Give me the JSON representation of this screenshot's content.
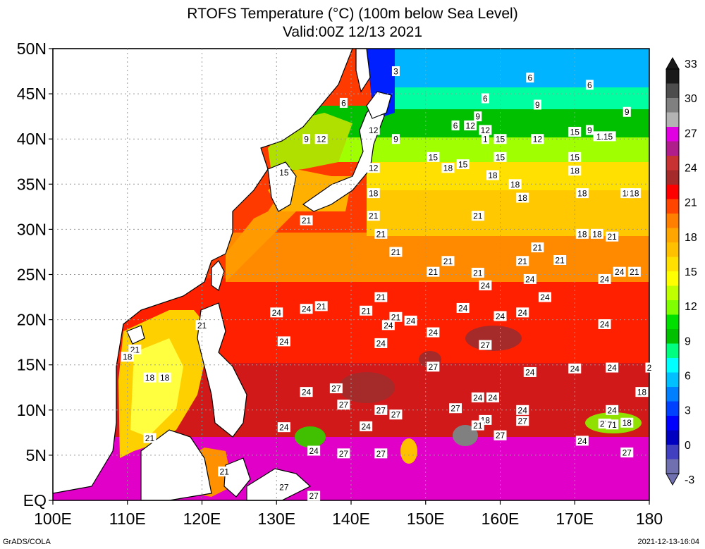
{
  "title_line1": "RTOFS Temperature (°C) (100m below Sea Level)",
  "title_line2": "Valid:00Z 12/13 2021",
  "lat_labels": [
    "50N",
    "45N",
    "40N",
    "35N",
    "30N",
    "25N",
    "20N",
    "15N",
    "10N",
    "5N",
    "EQ"
  ],
  "lon_labels": [
    "100E",
    "110E",
    "120E",
    "130E",
    "140E",
    "150E",
    "160E",
    "170E",
    "180"
  ],
  "colorbar": {
    "ticks": [
      "33",
      "30",
      "27",
      "24",
      "21",
      "18",
      "15",
      "12",
      "9",
      "6",
      "3",
      "0",
      "-3"
    ],
    "colors": [
      "#1a1a1a",
      "#4d4d4d",
      "#808080",
      "#b3b3b3",
      "#e100e1",
      "#b01e8c",
      "#c83232",
      "#a52a2a",
      "#ff0000",
      "#ff4500",
      "#ff7f00",
      "#ffa500",
      "#ffc000",
      "#ffe000",
      "#ffff00",
      "#c0ff00",
      "#7fff00",
      "#00e000",
      "#00c000",
      "#00ff80",
      "#00ffff",
      "#00c0ff",
      "#0080ff",
      "#0040ff",
      "#0000ff",
      "#0000c0",
      "#4040c0",
      "#7070b0"
    ]
  },
  "contour_labels": [
    {
      "t": "6",
      "lon": 164,
      "lat": 46.8
    },
    {
      "t": "6",
      "lon": 158,
      "lat": 44.5
    },
    {
      "t": "6",
      "lon": 172,
      "lat": 46
    },
    {
      "t": "6",
      "lon": 139,
      "lat": 44
    },
    {
      "t": "9",
      "lon": 165,
      "lat": 43.8
    },
    {
      "t": "9",
      "lon": 177,
      "lat": 43
    },
    {
      "t": "9",
      "lon": 157,
      "lat": 42.5
    },
    {
      "t": "3",
      "lon": 146,
      "lat": 47.5
    },
    {
      "t": "6",
      "lon": 154,
      "lat": 41.5
    },
    {
      "t": "12",
      "lon": 156,
      "lat": 41.5
    },
    {
      "t": "12",
      "lon": 158,
      "lat": 41
    },
    {
      "t": "12",
      "lon": 143,
      "lat": 41
    },
    {
      "t": "9",
      "lon": 134,
      "lat": 40
    },
    {
      "t": "12",
      "lon": 136,
      "lat": 40
    },
    {
      "t": "9",
      "lon": 146,
      "lat": 40
    },
    {
      "t": "15",
      "lon": 170,
      "lat": 40.8
    },
    {
      "t": "9",
      "lon": 172,
      "lat": 41
    },
    {
      "t": "1.15",
      "lon": 174,
      "lat": 40.3
    },
    {
      "t": "1",
      "lon": 158,
      "lat": 40
    },
    {
      "t": "15",
      "lon": 160,
      "lat": 40
    },
    {
      "t": "12",
      "lon": 165,
      "lat": 40
    },
    {
      "t": "15",
      "lon": 160,
      "lat": 38
    },
    {
      "t": "15",
      "lon": 151,
      "lat": 38
    },
    {
      "t": "15",
      "lon": 170,
      "lat": 38
    },
    {
      "t": "18",
      "lon": 153,
      "lat": 36.8
    },
    {
      "t": "15",
      "lon": 155,
      "lat": 37.2
    },
    {
      "t": "12",
      "lon": 143,
      "lat": 36.8
    },
    {
      "t": "15",
      "lon": 131,
      "lat": 36.3
    },
    {
      "t": "18",
      "lon": 159,
      "lat": 36
    },
    {
      "t": "18",
      "lon": 170,
      "lat": 36.5
    },
    {
      "t": "18",
      "lon": 162,
      "lat": 35
    },
    {
      "t": "18",
      "lon": 163,
      "lat": 33.5
    },
    {
      "t": "18",
      "lon": 171,
      "lat": 34
    },
    {
      "t": "18",
      "lon": 143,
      "lat": 34
    },
    {
      "t": "18",
      "lon": 177,
      "lat": 34
    },
    {
      "t": "18",
      "lon": 178,
      "lat": 34
    },
    {
      "t": "21",
      "lon": 143,
      "lat": 31.5
    },
    {
      "t": "21",
      "lon": 134,
      "lat": 31
    },
    {
      "t": "21",
      "lon": 157,
      "lat": 31.5
    },
    {
      "t": "21",
      "lon": 144,
      "lat": 29.5
    },
    {
      "t": "18",
      "lon": 171,
      "lat": 29.5
    },
    {
      "t": "18",
      "lon": 173,
      "lat": 29.5
    },
    {
      "t": "21",
      "lon": 175,
      "lat": 29.2
    },
    {
      "t": "21",
      "lon": 146,
      "lat": 27.5
    },
    {
      "t": "21",
      "lon": 165,
      "lat": 28
    },
    {
      "t": "21",
      "lon": 153,
      "lat": 26.5
    },
    {
      "t": "21",
      "lon": 151,
      "lat": 25.3
    },
    {
      "t": "21",
      "lon": 157,
      "lat": 25.2
    },
    {
      "t": "21",
      "lon": 163,
      "lat": 26.5
    },
    {
      "t": "21",
      "lon": 168,
      "lat": 26.6
    },
    {
      "t": "24",
      "lon": 164,
      "lat": 24.5
    },
    {
      "t": "24",
      "lon": 158,
      "lat": 23.8
    },
    {
      "t": "24",
      "lon": 174,
      "lat": 24.5
    },
    {
      "t": "24",
      "lon": 176,
      "lat": 25.3
    },
    {
      "t": "21",
      "lon": 178,
      "lat": 25.3
    },
    {
      "t": "21",
      "lon": 144,
      "lat": 22.5
    },
    {
      "t": "24",
      "lon": 166,
      "lat": 22.5
    },
    {
      "t": "21",
      "lon": 136,
      "lat": 21.5
    },
    {
      "t": "24",
      "lon": 134,
      "lat": 21.2
    },
    {
      "t": "21",
      "lon": 142,
      "lat": 21
    },
    {
      "t": "24",
      "lon": 155,
      "lat": 21.3
    },
    {
      "t": "24",
      "lon": 130,
      "lat": 20.8
    },
    {
      "t": "24",
      "lon": 160,
      "lat": 20.4
    },
    {
      "t": "24",
      "lon": 163,
      "lat": 20.8
    },
    {
      "t": "21",
      "lon": 146,
      "lat": 20.3
    },
    {
      "t": "24",
      "lon": 148,
      "lat": 19.9
    },
    {
      "t": "24",
      "lon": 145,
      "lat": 19.4
    },
    {
      "t": "21",
      "lon": 120,
      "lat": 19.4
    },
    {
      "t": "24",
      "lon": 174,
      "lat": 19.5
    },
    {
      "t": "24",
      "lon": 151,
      "lat": 18.6
    },
    {
      "t": "24",
      "lon": 131,
      "lat": 17.6
    },
    {
      "t": "24",
      "lon": 144,
      "lat": 17.4
    },
    {
      "t": "27",
      "lon": 158,
      "lat": 17.2
    },
    {
      "t": "21",
      "lon": 111,
      "lat": 16.7
    },
    {
      "t": "18",
      "lon": 110,
      "lat": 15.9
    },
    {
      "t": "27",
      "lon": 151,
      "lat": 14.8
    },
    {
      "t": "24",
      "lon": 164,
      "lat": 14.2
    },
    {
      "t": "24",
      "lon": 170,
      "lat": 14.6
    },
    {
      "t": "24",
      "lon": 175,
      "lat": 14.7
    },
    {
      "t": "2",
      "lon": 180,
      "lat": 14.7
    },
    {
      "t": "18",
      "lon": 113,
      "lat": 13.6
    },
    {
      "t": "18",
      "lon": 115,
      "lat": 13.6
    },
    {
      "t": "27",
      "lon": 138,
      "lat": 12.4
    },
    {
      "t": "24",
      "lon": 134,
      "lat": 12
    },
    {
      "t": "18",
      "lon": 179,
      "lat": 12
    },
    {
      "t": "24",
      "lon": 157,
      "lat": 11.4
    },
    {
      "t": "24",
      "lon": 159,
      "lat": 11.4
    },
    {
      "t": "27",
      "lon": 139,
      "lat": 10.6
    },
    {
      "t": "27",
      "lon": 144,
      "lat": 10
    },
    {
      "t": "27",
      "lon": 146,
      "lat": 9.5
    },
    {
      "t": "27",
      "lon": 154,
      "lat": 10.2
    },
    {
      "t": "24",
      "lon": 163,
      "lat": 10
    },
    {
      "t": "24",
      "lon": 175,
      "lat": 10
    },
    {
      "t": "27",
      "lon": 163,
      "lat": 8.8
    },
    {
      "t": "18",
      "lon": 158,
      "lat": 8.9
    },
    {
      "t": "21",
      "lon": 157,
      "lat": 8.3
    },
    {
      "t": "27",
      "lon": 174,
      "lat": 8.5
    },
    {
      "t": "71",
      "lon": 175,
      "lat": 8.4
    },
    {
      "t": "18",
      "lon": 177,
      "lat": 8.6
    },
    {
      "t": "24",
      "lon": 131,
      "lat": 8.1
    },
    {
      "t": "24",
      "lon": 142,
      "lat": 8.2
    },
    {
      "t": "21",
      "lon": 113,
      "lat": 6.9
    },
    {
      "t": "27",
      "lon": 160,
      "lat": 7.2
    },
    {
      "t": "24",
      "lon": 171,
      "lat": 6.6
    },
    {
      "t": "24",
      "lon": 135,
      "lat": 5.5
    },
    {
      "t": "27",
      "lon": 139,
      "lat": 5.2
    },
    {
      "t": "27",
      "lon": 144,
      "lat": 5.2
    },
    {
      "t": "27",
      "lon": 177,
      "lat": 5.3
    },
    {
      "t": "21",
      "lon": 123,
      "lat": 3.2
    },
    {
      "t": "27",
      "lon": 131,
      "lat": 1.5
    },
    {
      "t": "27",
      "lon": 135,
      "lat": 0.5
    }
  ],
  "footer_left": "GrADS/COLA",
  "footer_right": "2021-12-13-16:04"
}
